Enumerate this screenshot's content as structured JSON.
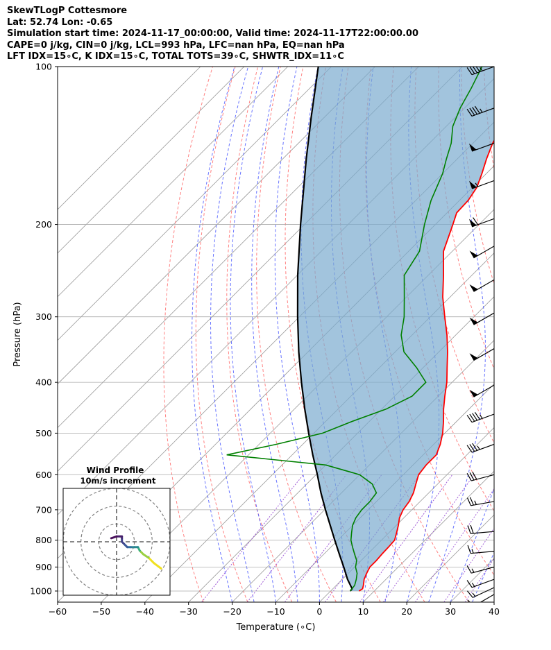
{
  "header": {
    "lines": [
      "SkewTLogP Cottesmore",
      "Lat: 52.74   Lon: -0.65",
      "Simulation start time: 2024-11-17_00:00:00, Valid time: 2024-11-17T22:00:00.00",
      "CAPE=0 j/kg, CIN=0 j/kg, LCL=993 hPa, LFC=nan hPa, EQ=nan hPa",
      "LFT IDX=15∘C, K IDX=15∘C, TOTAL TOTS=39∘C, SHWTR_IDX=11∘C"
    ]
  },
  "chart_data": {
    "type": "skewt",
    "xlabel": "Temperature (∘C)",
    "ylabel": "Pressure (hPa)",
    "xlim": [
      -60,
      40
    ],
    "ylim": [
      1050,
      100
    ],
    "y_scale": "log",
    "x_ticks": [
      -60,
      -50,
      -40,
      -30,
      -20,
      -10,
      0,
      10,
      20,
      30,
      40
    ],
    "y_ticks": [
      100,
      200,
      300,
      400,
      500,
      600,
      700,
      800,
      900,
      1000
    ],
    "grid": true,
    "skew": 45,
    "colors": {
      "temperature": "#ff0000",
      "dewpoint": "#008000",
      "parcel": "#000000",
      "cape_fill": "#7aabcf",
      "dry_adiabats": "#ff6b6b",
      "moist_adiabats": "#4d5cff",
      "mixing_ratio": "#9040d0",
      "isotherms": "#999999"
    },
    "temperature_profile": [
      [
        1000,
        6.5
      ],
      [
        990,
        6.8
      ],
      [
        975,
        6.2
      ],
      [
        950,
        5.0
      ],
      [
        925,
        4.2
      ],
      [
        900,
        3.5
      ],
      [
        875,
        3.5
      ],
      [
        850,
        3.3
      ],
      [
        825,
        3.2
      ],
      [
        800,
        3.0
      ],
      [
        775,
        1.8
      ],
      [
        750,
        0.5
      ],
      [
        725,
        -1.0
      ],
      [
        700,
        -2.0
      ],
      [
        675,
        -2.5
      ],
      [
        650,
        -3.5
      ],
      [
        625,
        -5.0
      ],
      [
        600,
        -6.5
      ],
      [
        575,
        -7.0
      ],
      [
        550,
        -7.0
      ],
      [
        525,
        -8.5
      ],
      [
        500,
        -10.5
      ],
      [
        475,
        -13.0
      ],
      [
        450,
        -15.8
      ],
      [
        425,
        -18.5
      ],
      [
        400,
        -21.2
      ],
      [
        375,
        -24.5
      ],
      [
        350,
        -28.0
      ],
      [
        325,
        -32.0
      ],
      [
        300,
        -36.7
      ],
      [
        275,
        -41.7
      ],
      [
        250,
        -46.5
      ],
      [
        225,
        -52.0
      ],
      [
        200,
        -56.0
      ],
      [
        190,
        -57.8
      ],
      [
        180,
        -58.0
      ],
      [
        170,
        -59.0
      ],
      [
        160,
        -61.0
      ],
      [
        150,
        -63.3
      ],
      [
        140,
        -65.5
      ],
      [
        130,
        -67.2
      ],
      [
        120,
        -70.0
      ],
      [
        110,
        -74.5
      ],
      [
        100,
        -80.0
      ]
    ],
    "dewpoint_profile": [
      [
        1000,
        4.5
      ],
      [
        975,
        4.2
      ],
      [
        950,
        3.2
      ],
      [
        925,
        2.0
      ],
      [
        900,
        0.2
      ],
      [
        875,
        -1.0
      ],
      [
        850,
        -3.0
      ],
      [
        825,
        -5.0
      ],
      [
        800,
        -7.0
      ],
      [
        775,
        -8.5
      ],
      [
        750,
        -10.0
      ],
      [
        725,
        -11.0
      ],
      [
        700,
        -11.5
      ],
      [
        675,
        -11.5
      ],
      [
        650,
        -12.0
      ],
      [
        625,
        -15.0
      ],
      [
        600,
        -20.0
      ],
      [
        575,
        -30.0
      ],
      [
        550,
        -55.0
      ],
      [
        525,
        -46.0
      ],
      [
        500,
        -38.0
      ],
      [
        475,
        -34.0
      ],
      [
        450,
        -29.0
      ],
      [
        425,
        -26.0
      ],
      [
        400,
        -26.0
      ],
      [
        375,
        -31.5
      ],
      [
        350,
        -38.0
      ],
      [
        325,
        -42.5
      ],
      [
        300,
        -46.0
      ],
      [
        275,
        -50.5
      ],
      [
        250,
        -55.5
      ],
      [
        225,
        -57.5
      ],
      [
        200,
        -62.5
      ],
      [
        180,
        -66.5
      ],
      [
        160,
        -70.0
      ],
      [
        150,
        -72.5
      ],
      [
        140,
        -75.0
      ],
      [
        130,
        -78.5
      ],
      [
        120,
        -81.0
      ],
      [
        110,
        -83.0
      ],
      [
        100,
        -85.5
      ]
    ],
    "parcel_profile": [
      [
        1000,
        4.5
      ],
      [
        990,
        4.4
      ],
      [
        950,
        1.2
      ],
      [
        900,
        -2.5
      ],
      [
        850,
        -6.5
      ],
      [
        800,
        -10.7
      ],
      [
        750,
        -15.1
      ],
      [
        700,
        -19.8
      ],
      [
        650,
        -24.7
      ],
      [
        600,
        -29.7
      ],
      [
        550,
        -35.3
      ],
      [
        500,
        -41.2
      ],
      [
        450,
        -47.6
      ],
      [
        400,
        -54.5
      ],
      [
        350,
        -62.1
      ],
      [
        300,
        -70.4
      ],
      [
        250,
        -79.9
      ],
      [
        200,
        -90.9
      ],
      [
        150,
        -104.6
      ],
      [
        125,
        -113.0
      ],
      [
        100,
        -123.0
      ]
    ],
    "wind_barbs": [
      {
        "p": 100,
        "spd_kt": 45,
        "dir": 250
      },
      {
        "p": 120,
        "spd_kt": 45,
        "dir": 250
      },
      {
        "p": 140,
        "spd_kt": 50,
        "dir": 250
      },
      {
        "p": 165,
        "spd_kt": 55,
        "dir": 250
      },
      {
        "p": 195,
        "spd_kt": 60,
        "dir": 250
      },
      {
        "p": 220,
        "spd_kt": 50,
        "dir": 240
      },
      {
        "p": 255,
        "spd_kt": 50,
        "dir": 240
      },
      {
        "p": 295,
        "spd_kt": 50,
        "dir": 240
      },
      {
        "p": 345,
        "spd_kt": 50,
        "dir": 240
      },
      {
        "p": 405,
        "spd_kt": 50,
        "dir": 240
      },
      {
        "p": 460,
        "spd_kt": 45,
        "dir": 250
      },
      {
        "p": 525,
        "spd_kt": 35,
        "dir": 250
      },
      {
        "p": 600,
        "spd_kt": 30,
        "dir": 255
      },
      {
        "p": 675,
        "spd_kt": 25,
        "dir": 260
      },
      {
        "p": 770,
        "spd_kt": 20,
        "dir": 265
      },
      {
        "p": 840,
        "spd_kt": 15,
        "dir": 265
      },
      {
        "p": 900,
        "spd_kt": 15,
        "dir": 255
      },
      {
        "p": 950,
        "spd_kt": 15,
        "dir": 250
      },
      {
        "p": 985,
        "spd_kt": 15,
        "dir": 245
      },
      {
        "p": 1015,
        "spd_kt": 10,
        "dir": 240
      }
    ],
    "hodograph": {
      "title": "Wind Profile",
      "subtitle": "10m/s increment",
      "rings_ms": [
        10,
        20,
        30
      ],
      "range_ms": 30,
      "points": [
        [
          25,
          -15
        ],
        [
          21,
          -12
        ],
        [
          18,
          -9
        ],
        [
          15,
          -7
        ],
        [
          13,
          -5
        ],
        [
          12,
          -3
        ],
        [
          10,
          -3
        ],
        [
          8,
          -3
        ],
        [
          6,
          -3
        ],
        [
          5,
          -2
        ],
        [
          4,
          -1
        ],
        [
          3,
          0
        ],
        [
          3,
          2
        ],
        [
          3,
          3
        ],
        [
          2,
          3
        ],
        [
          0,
          3
        ],
        [
          -3,
          2
        ]
      ]
    }
  }
}
